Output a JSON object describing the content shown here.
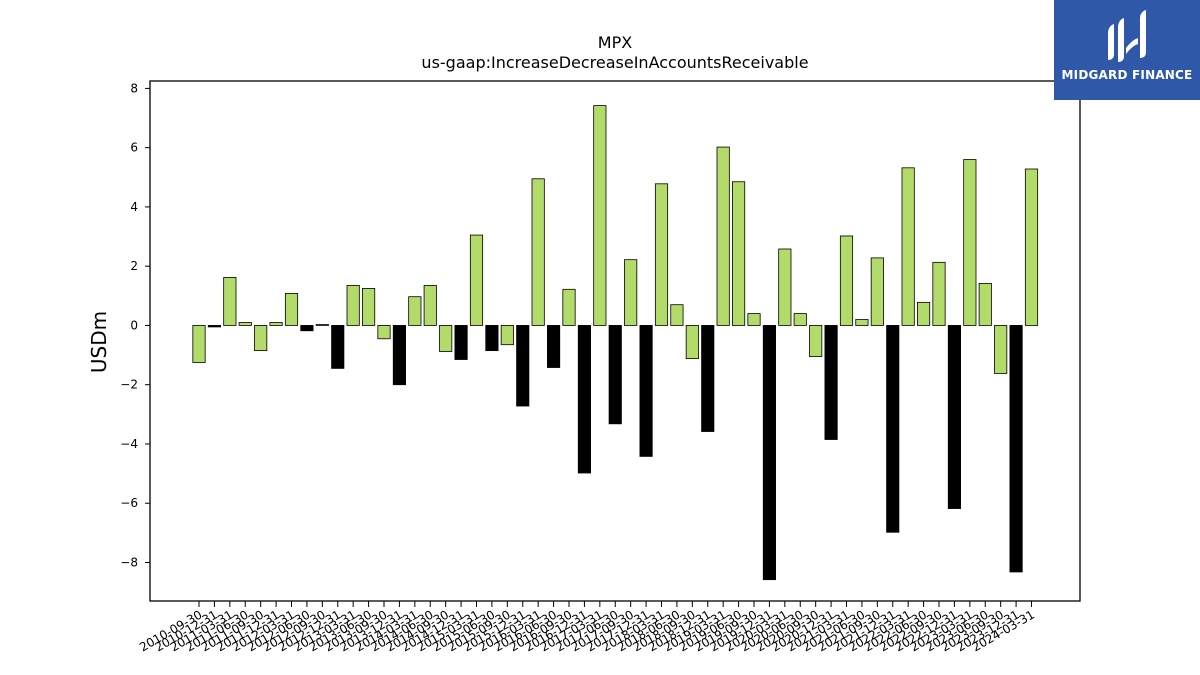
{
  "logo": {
    "text": "MIDGARD FINANCE"
  },
  "colors": {
    "positive": "#b2db6a",
    "negative": "#000000",
    "logo_bg": "#2f58a8"
  },
  "chart_data": {
    "type": "bar",
    "title": "MPX",
    "subtitle": "us-gaap:IncreaseDecreaseInAccountsReceivable",
    "xlabel": "",
    "ylabel": "USDm",
    "ylim": [
      -9.3,
      8.25
    ],
    "yticks": [
      8,
      6,
      4,
      2,
      0,
      -2,
      -4,
      -6,
      -8
    ],
    "grid": false,
    "categories": [
      "2010-09-30",
      "2010-12-31",
      "2011-03-31",
      "2011-06-30",
      "2011-09-30",
      "2011-12-31",
      "2012-03-31",
      "2012-06-30",
      "2012-09-30",
      "2012-12-31",
      "2013-03-31",
      "2013-06-30",
      "2013-09-30",
      "2013-12-31",
      "2014-03-31",
      "2014-06-30",
      "2014-09-30",
      "2014-12-31",
      "2015-03-31",
      "2015-06-30",
      "2015-09-30",
      "2015-12-31",
      "2016-03-31",
      "2016-06-30",
      "2016-09-30",
      "2016-12-31",
      "2017-03-31",
      "2017-06-30",
      "2017-09-30",
      "2017-12-31",
      "2018-03-31",
      "2018-06-30",
      "2018-09-30",
      "2018-12-31",
      "2019-03-31",
      "2019-06-30",
      "2019-09-30",
      "2019-12-31",
      "2020-03-31",
      "2020-06-30",
      "2020-09-30",
      "2020-12-31",
      "2021-03-31",
      "2021-06-30",
      "2021-09-30",
      "2021-12-31",
      "2022-03-31",
      "2022-06-30",
      "2022-09-30",
      "2022-12-31",
      "2023-03-31",
      "2023-06-30",
      "2023-09-30",
      "2023-12-31",
      "2024-03-31"
    ],
    "values": [
      -1.25,
      -0.05,
      1.62,
      0.1,
      -0.85,
      0.1,
      1.08,
      -0.18,
      0.03,
      -1.45,
      1.35,
      1.25,
      -0.45,
      -2.0,
      0.97,
      1.35,
      -0.88,
      -1.15,
      3.05,
      -0.85,
      -0.65,
      -2.72,
      4.95,
      -1.42,
      1.22,
      -4.98,
      7.42,
      -3.32,
      2.22,
      -4.42,
      4.78,
      0.7,
      -1.12,
      -3.58,
      6.02,
      4.85,
      0.4,
      -8.58,
      2.58,
      0.4,
      -1.05,
      -3.85,
      3.02,
      0.2,
      2.28,
      -6.98,
      5.32,
      0.78,
      2.13,
      -6.18,
      5.6,
      1.42,
      -1.62,
      -8.32,
      5.28
    ]
  }
}
